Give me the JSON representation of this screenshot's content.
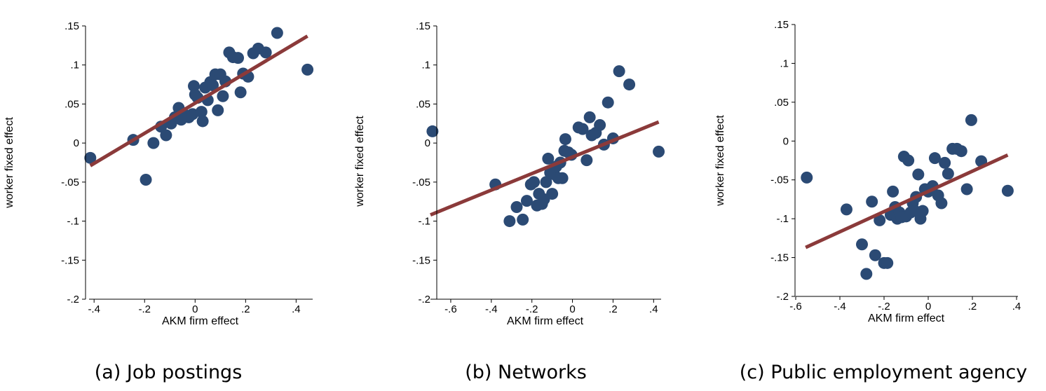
{
  "colors": {
    "points": "#2b4a74",
    "fit": "#8b3a3a",
    "axis": "#000000"
  },
  "chart_data": [
    {
      "type": "scatter",
      "caption": "(a) Job postings",
      "xlabel": "AKM firm effect",
      "ylabel": "worker fixed effect",
      "xlim": [
        -0.42,
        0.46
      ],
      "ylim": [
        -0.2,
        0.15
      ],
      "xticks": [
        -0.4,
        -0.2,
        0,
        0.2,
        0.4
      ],
      "xtick_labels": [
        "-.4",
        "-.2",
        "0",
        ".2",
        ".4"
      ],
      "yticks": [
        -0.2,
        -0.15,
        -0.1,
        -0.05,
        0,
        0.05,
        0.1,
        0.15
      ],
      "ytick_labels": [
        "-.2",
        "-.15",
        "-.1",
        "-.05",
        "0",
        ".05",
        ".1",
        ".15"
      ],
      "fit_line": {
        "x": [
          -0.415,
          0.445
        ],
        "y": [
          -0.029,
          0.137
        ]
      },
      "points": [
        {
          "x": -0.415,
          "y": -0.019
        },
        {
          "x": -0.245,
          "y": 0.004
        },
        {
          "x": -0.195,
          "y": -0.047
        },
        {
          "x": -0.165,
          "y": 0.0
        },
        {
          "x": -0.135,
          "y": 0.021
        },
        {
          "x": -0.115,
          "y": 0.01
        },
        {
          "x": -0.095,
          "y": 0.025
        },
        {
          "x": -0.08,
          "y": 0.033
        },
        {
          "x": -0.065,
          "y": 0.045
        },
        {
          "x": -0.055,
          "y": 0.03
        },
        {
          "x": -0.04,
          "y": 0.036
        },
        {
          "x": -0.025,
          "y": 0.033
        },
        {
          "x": -0.01,
          "y": 0.037
        },
        {
          "x": -0.005,
          "y": 0.073
        },
        {
          "x": 0.0,
          "y": 0.062
        },
        {
          "x": 0.01,
          "y": 0.058
        },
        {
          "x": 0.025,
          "y": 0.04
        },
        {
          "x": 0.03,
          "y": 0.028
        },
        {
          "x": 0.04,
          "y": 0.071
        },
        {
          "x": 0.05,
          "y": 0.055
        },
        {
          "x": 0.06,
          "y": 0.078
        },
        {
          "x": 0.07,
          "y": 0.074
        },
        {
          "x": 0.08,
          "y": 0.088
        },
        {
          "x": 0.09,
          "y": 0.042
        },
        {
          "x": 0.1,
          "y": 0.088
        },
        {
          "x": 0.11,
          "y": 0.06
        },
        {
          "x": 0.12,
          "y": 0.079
        },
        {
          "x": 0.135,
          "y": 0.116
        },
        {
          "x": 0.15,
          "y": 0.11
        },
        {
          "x": 0.17,
          "y": 0.109
        },
        {
          "x": 0.18,
          "y": 0.065
        },
        {
          "x": 0.19,
          "y": 0.089
        },
        {
          "x": 0.21,
          "y": 0.085
        },
        {
          "x": 0.23,
          "y": 0.115
        },
        {
          "x": 0.25,
          "y": 0.121
        },
        {
          "x": 0.28,
          "y": 0.116
        },
        {
          "x": 0.325,
          "y": 0.141
        },
        {
          "x": 0.445,
          "y": 0.094
        }
      ]
    },
    {
      "type": "scatter",
      "caption": "(b) Networks",
      "xlabel": "AKM firm effect",
      "ylabel": "worker fixed effect",
      "xlim": [
        -0.7,
        0.43
      ],
      "ylim": [
        -0.2,
        0.15
      ],
      "xticks": [
        -0.6,
        -0.4,
        -0.2,
        0,
        0.2,
        0.4
      ],
      "xtick_labels": [
        "-.6",
        "-.4",
        "-.2",
        "0",
        ".2",
        ".4"
      ],
      "yticks": [
        -0.2,
        -0.15,
        -0.1,
        -0.05,
        0,
        0.05,
        0.1,
        0.15
      ],
      "ytick_labels": [
        "-.2",
        "-.15",
        "-.1",
        "-.05",
        "0",
        ".05",
        ".1",
        ".15"
      ],
      "fit_line": {
        "x": [
          -0.7,
          0.425
        ],
        "y": [
          -0.092,
          0.027
        ]
      },
      "points": [
        {
          "x": -0.69,
          "y": 0.015
        },
        {
          "x": -0.38,
          "y": -0.053
        },
        {
          "x": -0.31,
          "y": -0.1
        },
        {
          "x": -0.275,
          "y": -0.082
        },
        {
          "x": -0.245,
          "y": -0.098
        },
        {
          "x": -0.225,
          "y": -0.074
        },
        {
          "x": -0.205,
          "y": -0.053
        },
        {
          "x": -0.19,
          "y": -0.05
        },
        {
          "x": -0.175,
          "y": -0.08
        },
        {
          "x": -0.165,
          "y": -0.065
        },
        {
          "x": -0.15,
          "y": -0.078
        },
        {
          "x": -0.14,
          "y": -0.072
        },
        {
          "x": -0.13,
          "y": -0.05
        },
        {
          "x": -0.12,
          "y": -0.02
        },
        {
          "x": -0.11,
          "y": -0.038
        },
        {
          "x": -0.1,
          "y": -0.065
        },
        {
          "x": -0.09,
          "y": -0.04
        },
        {
          "x": -0.08,
          "y": -0.03
        },
        {
          "x": -0.07,
          "y": -0.045
        },
        {
          "x": -0.06,
          "y": -0.025
        },
        {
          "x": -0.05,
          "y": -0.045
        },
        {
          "x": -0.04,
          "y": -0.01
        },
        {
          "x": -0.035,
          "y": 0.005
        },
        {
          "x": -0.02,
          "y": -0.012
        },
        {
          "x": -0.005,
          "y": -0.015
        },
        {
          "x": 0.03,
          "y": 0.02
        },
        {
          "x": 0.05,
          "y": 0.018
        },
        {
          "x": 0.07,
          "y": -0.022
        },
        {
          "x": 0.085,
          "y": 0.033
        },
        {
          "x": 0.095,
          "y": 0.01
        },
        {
          "x": 0.115,
          "y": 0.013
        },
        {
          "x": 0.135,
          "y": 0.023
        },
        {
          "x": 0.155,
          "y": -0.002
        },
        {
          "x": 0.175,
          "y": 0.052
        },
        {
          "x": 0.2,
          "y": 0.006
        },
        {
          "x": 0.23,
          "y": 0.092
        },
        {
          "x": 0.28,
          "y": 0.075
        },
        {
          "x": 0.425,
          "y": -0.011
        }
      ]
    },
    {
      "type": "scatter",
      "caption": "(c) Public employment agency",
      "xlabel": "AKM firm effect",
      "ylabel": "worker fixed effect",
      "xlim": [
        -0.6,
        0.4
      ],
      "ylim": [
        -0.2,
        0.15
      ],
      "xticks": [
        -0.6,
        -0.4,
        -0.2,
        0,
        0.2,
        0.4
      ],
      "xtick_labels": [
        "-.6",
        "-.4",
        "-.2",
        "0",
        ".2",
        ".4"
      ],
      "yticks": [
        -0.2,
        -0.15,
        -0.1,
        -0.05,
        0,
        0.05,
        0.1,
        0.15
      ],
      "ytick_labels": [
        "-.2",
        "-.15",
        "-.1",
        "-.05",
        "0",
        ".05",
        ".1",
        ".15"
      ],
      "fit_line": {
        "x": [
          -0.555,
          0.36
        ],
        "y": [
          -0.137,
          -0.018
        ]
      },
      "points": [
        {
          "x": -0.55,
          "y": -0.047
        },
        {
          "x": -0.37,
          "y": -0.088
        },
        {
          "x": -0.3,
          "y": -0.133
        },
        {
          "x": -0.28,
          "y": -0.171
        },
        {
          "x": -0.255,
          "y": -0.078
        },
        {
          "x": -0.24,
          "y": -0.147
        },
        {
          "x": -0.22,
          "y": -0.102
        },
        {
          "x": -0.2,
          "y": -0.157
        },
        {
          "x": -0.185,
          "y": -0.157
        },
        {
          "x": -0.17,
          "y": -0.095
        },
        {
          "x": -0.16,
          "y": -0.065
        },
        {
          "x": -0.15,
          "y": -0.085
        },
        {
          "x": -0.14,
          "y": -0.1
        },
        {
          "x": -0.13,
          "y": -0.092
        },
        {
          "x": -0.12,
          "y": -0.098
        },
        {
          "x": -0.11,
          "y": -0.02
        },
        {
          "x": -0.1,
          "y": -0.097
        },
        {
          "x": -0.09,
          "y": -0.025
        },
        {
          "x": -0.08,
          "y": -0.092
        },
        {
          "x": -0.07,
          "y": -0.08
        },
        {
          "x": -0.06,
          "y": -0.09
        },
        {
          "x": -0.055,
          "y": -0.072
        },
        {
          "x": -0.045,
          "y": -0.043
        },
        {
          "x": -0.035,
          "y": -0.1
        },
        {
          "x": -0.025,
          "y": -0.09
        },
        {
          "x": -0.015,
          "y": -0.062
        },
        {
          "x": 0.0,
          "y": -0.065
        },
        {
          "x": 0.02,
          "y": -0.058
        },
        {
          "x": 0.03,
          "y": -0.022
        },
        {
          "x": 0.045,
          "y": -0.07
        },
        {
          "x": 0.06,
          "y": -0.08
        },
        {
          "x": 0.075,
          "y": -0.028
        },
        {
          "x": 0.09,
          "y": -0.042
        },
        {
          "x": 0.11,
          "y": -0.01
        },
        {
          "x": 0.13,
          "y": -0.01
        },
        {
          "x": 0.15,
          "y": -0.013
        },
        {
          "x": 0.175,
          "y": -0.062
        },
        {
          "x": 0.195,
          "y": 0.027
        },
        {
          "x": 0.24,
          "y": -0.026
        },
        {
          "x": 0.36,
          "y": -0.064
        }
      ]
    }
  ]
}
